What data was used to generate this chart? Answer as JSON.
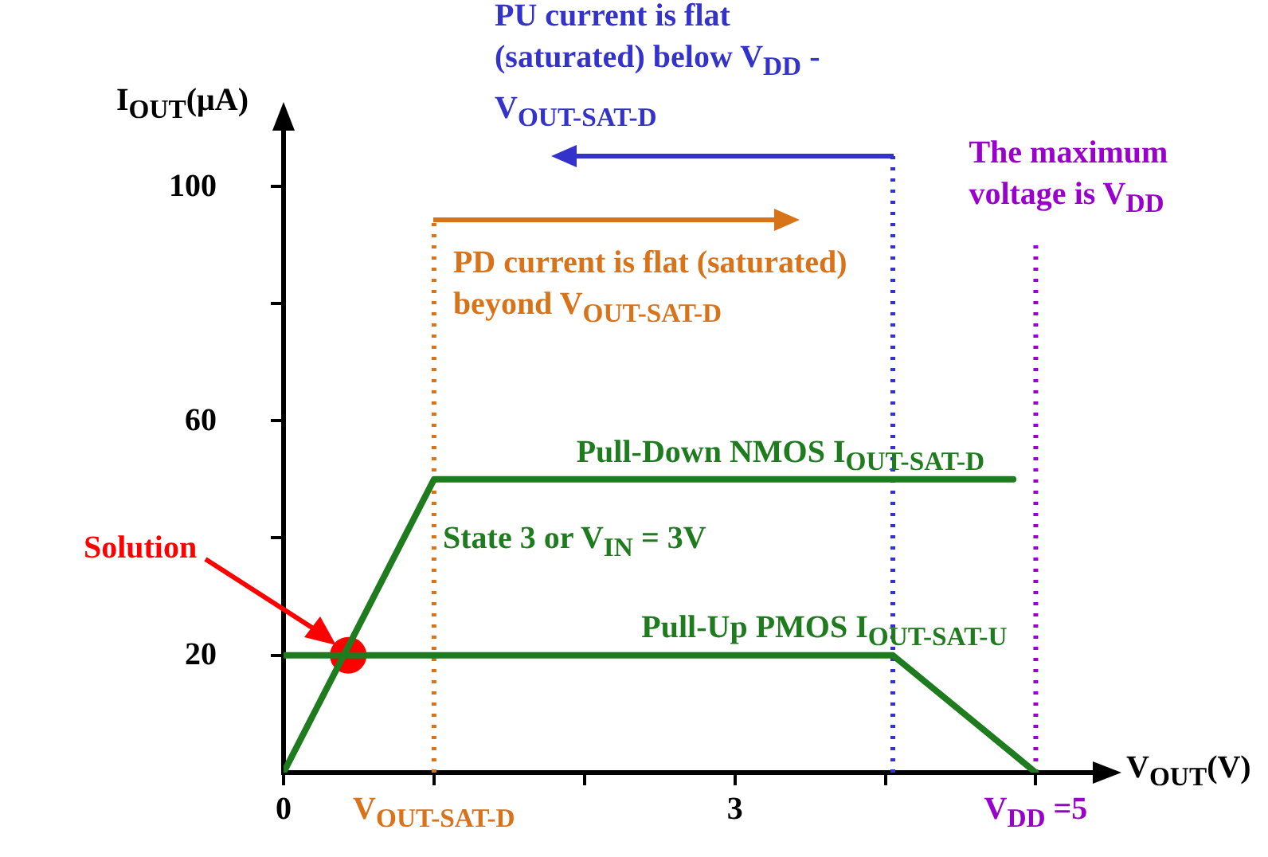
{
  "chart_data": {
    "type": "line",
    "xlabel": "V$_{OUT}$(V)",
    "ylabel": "I$_{OUT}$(μA)",
    "xlim": [
      0,
      5.4
    ],
    "ylim": [
      0,
      110
    ],
    "xticks": [
      {
        "value": 0,
        "label": "0"
      },
      {
        "value": 1,
        "label": "V$_{OUT-SAT-D}$"
      },
      {
        "value": 2,
        "label": null
      },
      {
        "value": 3,
        "label": "3"
      },
      {
        "value": 4,
        "label": null
      },
      {
        "value": 5,
        "label": "V$_{DD}$ =5"
      }
    ],
    "yticks": [
      20,
      {
        "value": 40,
        "label": null
      },
      60,
      {
        "value": 80,
        "label": null
      },
      100
    ],
    "grid": false,
    "legend": false,
    "marker": "none",
    "line_style": "solid",
    "series": [
      {
        "name": "Pull-Down NMOS I$_{OUT-SAT-D}$",
        "color": "#1e7b1e",
        "x": [
          0,
          1,
          4.85
        ],
        "values": [
          0,
          50,
          50
        ]
      },
      {
        "name": "Pull-Up PMOS I$_{OUT-SAT-U}$",
        "color": "#1e7b1e",
        "x": [
          0,
          4.05,
          5
        ],
        "values": [
          20,
          20,
          0
        ]
      },
      {
        "type": "scatter",
        "color": "#ff0000",
        "x": [
          0.43
        ],
        "values": [
          20
        ],
        "marker": "circle"
      }
    ],
    "ref_lines": [
      {
        "axis": "x",
        "value": 1,
        "label": "PD current is flat (saturated) beyond V$_{OUT-SAT-D}$",
        "color": "#d9731a",
        "line_style": "dotted"
      },
      {
        "axis": "x",
        "value": 4.05,
        "label": "PU current is flat (saturated) below V$_{DD}$ - V$_{OUT-SAT-D}$",
        "color": "#3333cc",
        "line_style": "dotted"
      },
      {
        "axis": "x",
        "value": 5,
        "label": "The maximum voltage is V$_{DD}$",
        "color": "#9900cc",
        "line_style": "dotted"
      }
    ],
    "annotations": [
      "State 3 or V$_{IN}$ = 3V",
      "Solution"
    ]
  }
}
